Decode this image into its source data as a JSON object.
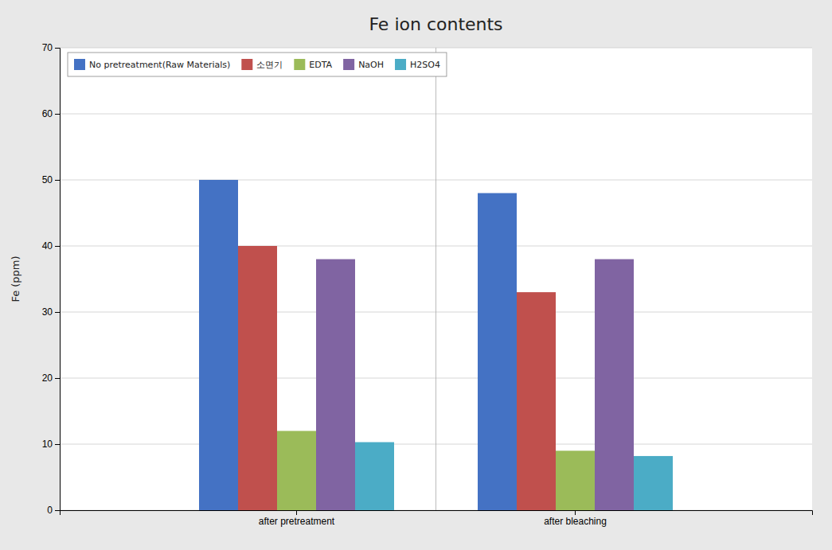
{
  "chart_data": {
    "type": "bar",
    "title": "Fe ion contents",
    "ylabel": "Fe (ppm)",
    "categories": [
      "after pretreatment",
      "after bleaching"
    ],
    "series": [
      {
        "name": "No pretreatment(Raw Materials)",
        "color": "#4472C4",
        "values": [
          50,
          48
        ]
      },
      {
        "name": "소면기",
        "color": "#C0504D",
        "values": [
          40,
          33
        ]
      },
      {
        "name": "EDTA",
        "color": "#9BBB59",
        "values": [
          12,
          9
        ]
      },
      {
        "name": "NaOH",
        "color": "#8064A2",
        "values": [
          38,
          38
        ]
      },
      {
        "name": "H2SO4",
        "color": "#4BACC6",
        "values": [
          10.3,
          8.2
        ]
      }
    ],
    "ylim": [
      0,
      70
    ],
    "yticks": [
      0,
      10,
      20,
      30,
      40,
      50,
      60,
      70
    ],
    "grid": true,
    "legend": "upper left"
  }
}
